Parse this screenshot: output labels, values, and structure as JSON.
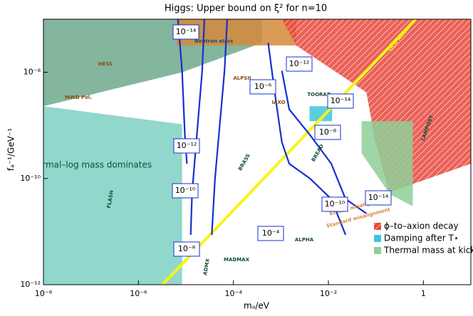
{
  "chart_data": {
    "type": "line",
    "title": "Higgs: Upper bound on ξ² for n=10",
    "xlabel": "mₐ/eV",
    "ylabel": "fₐ⁻¹/GeV⁻¹",
    "log_x": true,
    "log_y": true,
    "xlim": [
      1e-08,
      10
    ],
    "ylim": [
      1e-12,
      1e-07
    ],
    "xticks": [
      {
        "value": 1e-08,
        "label": "10⁻⁸"
      },
      {
        "value": 1e-06,
        "label": "10⁻⁶"
      },
      {
        "value": 0.0001,
        "label": "10⁻⁴"
      },
      {
        "value": 0.01,
        "label": "10⁻²"
      },
      1
    ],
    "yticks": [
      {
        "value": 1e-12,
        "label": "10⁻¹²"
      },
      {
        "value": 1e-10,
        "label": "10⁻¹⁰"
      },
      {
        "value": 1e-08,
        "label": "10⁻⁸"
      }
    ],
    "regions": [
      {
        "color": "#7fd0c2",
        "x": [
          1e-08,
          8.3e-06,
          8.3e-06,
          1e-08
        ],
        "y": [
          1e-12,
          1e-12,
          1.05e-09,
          2.3e-09
        ]
      },
      {
        "color": "#6fa98c",
        "x": [
          1e-08,
          0.0004,
          0.0004,
          8.3e-06,
          1e-08
        ],
        "y": [
          1e-07,
          1e-07,
          3.6e-08,
          1e-08,
          2.3e-09
        ]
      },
      {
        "color": "#d4893c",
        "x": [
          6.3e-06,
          0.0021,
          0.0021,
          6.3e-06
        ],
        "y": [
          1e-07,
          1e-07,
          3.2e-08,
          3.2e-08
        ]
      },
      {
        "name": "ϕ–to–axion decay",
        "color": "#e8453a",
        "x": [
          0.00105,
          10,
          10,
          0.19,
          0.098,
          0.063,
          0.0021
        ],
        "y": [
          1e-07,
          1e-07,
          1.9e-10,
          5.5e-11,
          4.8e-10,
          4.2e-09,
          3.2e-08
        ]
      },
      {
        "name": "Damping after T⋆",
        "color": "#3ec6d8",
        "x": [
          0.004,
          0.012,
          0.012,
          0.004
        ],
        "y": [
          2.3e-09,
          2.3e-09,
          1.2e-09,
          1.2e-09
        ]
      },
      {
        "name": "Thermal mass at kick",
        "color": "#8fcf98",
        "x": [
          0.05,
          0.6,
          0.6,
          0.2,
          0.05
        ],
        "y": [
          1.2e-09,
          1.2e-09,
          3e-11,
          5e-11,
          3e-10
        ]
      }
    ],
    "qcd_axion": {
      "color": "#f5f51a",
      "x": [
        3.2e-06,
        0.69
      ],
      "y": [
        1e-12,
        1e-07
      ]
    },
    "series": [
      {
        "color": "#1530d0",
        "x": [
          6.8e-06,
          8.3e-06,
          9.5e-06,
          1.05e-05
        ],
        "values": [
          1e-07,
          1.07e-08,
          6.6e-10,
          1.9e-10
        ]
      },
      {
        "color": "#1530d0",
        "x": [
          2.45e-05,
          2.2e-05,
          1.7e-05,
          1.35e-05,
          1.26e-05
        ],
        "values": [
          1e-07,
          1.07e-08,
          6.6e-10,
          5.5e-11,
          8.7e-12
        ]
      },
      {
        "color": "#1530d0",
        "x": [
          7.4e-05,
          6.5e-05,
          4.1e-05,
          3.5e-05
        ],
        "values": [
          1e-07,
          1.07e-08,
          1e-10,
          8.7e-12
        ]
      },
      {
        "color": "#1530d0",
        "x": [
          0.00054,
          0.00074,
          0.00105,
          0.0015,
          0.0041,
          0.0115,
          0.023
        ],
        "values": [
          3.6e-08,
          4.2e-09,
          4.8e-10,
          1.9e-10,
          1e-10,
          4.1e-11,
          8.7e-12
        ]
      },
      {
        "color": "#1530d0",
        "x": [
          0.00105,
          0.0015,
          0.0041,
          0.0115,
          0.023,
          0.063
        ],
        "values": [
          1.07e-08,
          2e-09,
          6.6e-10,
          1.9e-10,
          4.1e-11,
          2.2e-11
        ]
      }
    ],
    "contour_labels": [
      "10⁻¹⁴",
      "10⁻¹²",
      "10⁻⁶",
      "10⁻¹²",
      "10⁻¹⁴",
      "10⁻⁸",
      "10⁻¹⁰",
      "10⁻¹⁰",
      "10⁻¹⁴",
      "10⁻⁴",
      "10⁻⁸"
    ],
    "annotations": [
      "Neutron stars",
      "HESS",
      "MWD Pol.",
      "ALPSII",
      "IAXO",
      "TOORAD",
      "BREAD",
      "BRASS",
      "ADMX",
      "FLASH",
      "MADMAX",
      "ALPHA",
      "LAMPOST",
      "QCD Axion",
      "Thermal–log mass dominates",
      "Kinetic misalignment",
      "Standard misalignment"
    ]
  }
}
